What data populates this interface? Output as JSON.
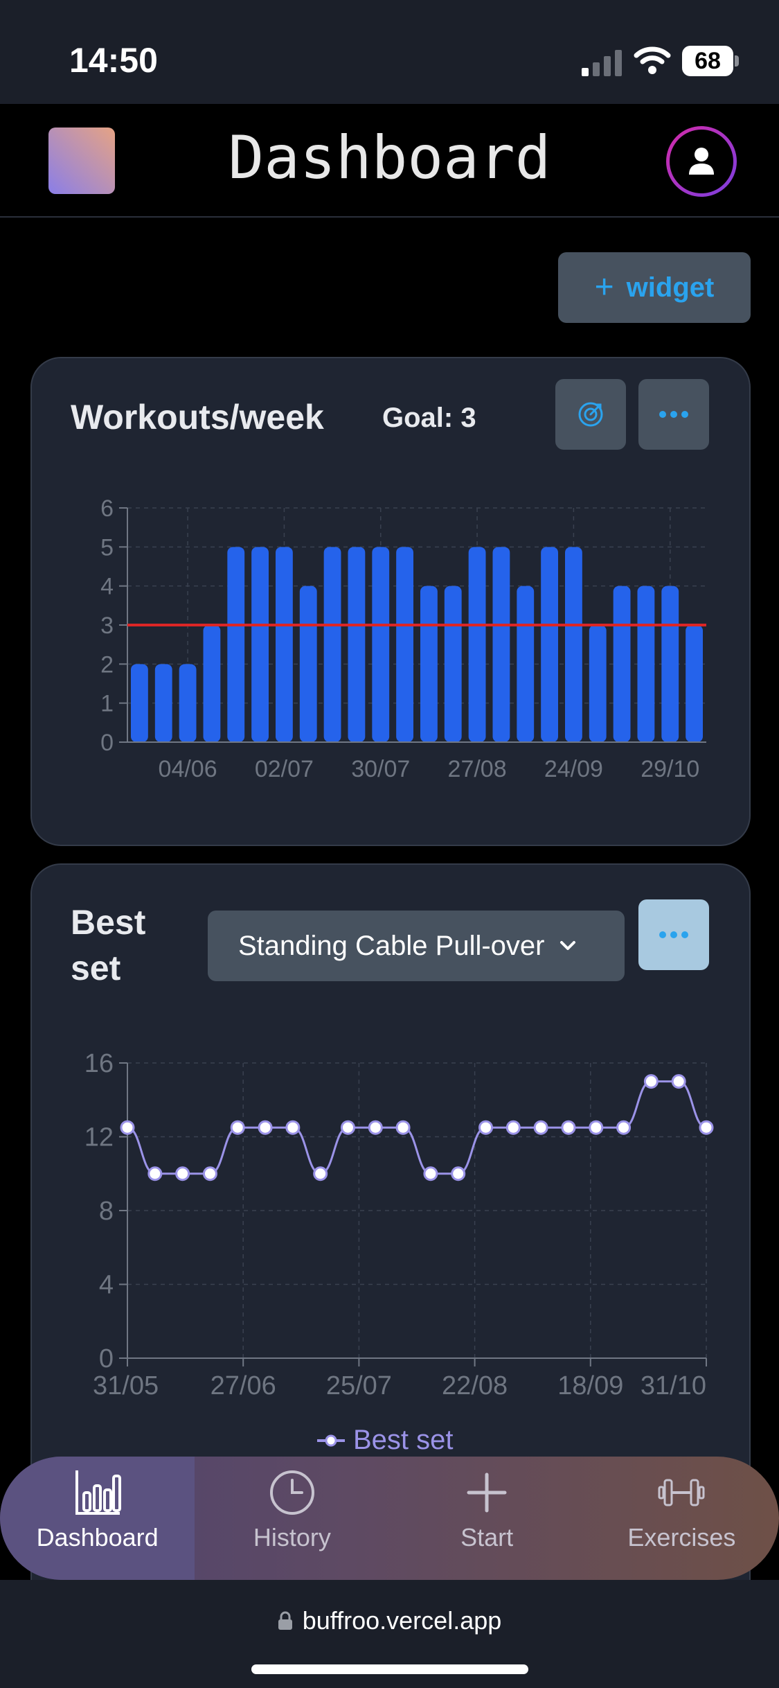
{
  "status_bar": {
    "time": "14:50",
    "battery": "68"
  },
  "header": {
    "title": "Dashboard"
  },
  "toolbar": {
    "add_widget_label": "widget"
  },
  "workouts_card": {
    "title": "Workouts/week",
    "goal_label": "Goal: 3"
  },
  "best_set_card": {
    "title_line1": "Best",
    "title_line2": "set",
    "exercise_select": "Standing Cable Pull-over",
    "legend": "Best set"
  },
  "chart_data": [
    {
      "type": "bar",
      "title": "Workouts/week",
      "x_tick_labels": [
        "04/06",
        "02/07",
        "30/07",
        "27/08",
        "24/09",
        "29/10"
      ],
      "values": [
        2,
        2,
        2,
        3,
        5,
        5,
        5,
        4,
        5,
        5,
        5,
        5,
        4,
        4,
        5,
        5,
        4,
        5,
        5,
        3,
        4,
        4,
        4,
        3
      ],
      "goal_line": 3,
      "ylim": [
        0,
        6
      ],
      "y_ticks": [
        0,
        1,
        2,
        3,
        4,
        5,
        6
      ],
      "bar_color": "#2563eb",
      "goal_color": "#dc2626",
      "grid": true
    },
    {
      "type": "line",
      "series": [
        {
          "name": "Best set",
          "values": [
            12.5,
            10,
            10,
            10,
            12.5,
            12.5,
            12.5,
            10,
            12.5,
            12.5,
            12.5,
            10,
            10,
            12.5,
            12.5,
            12.5,
            12.5,
            12.5,
            12.5,
            15,
            15,
            12.5
          ]
        }
      ],
      "x_tick_labels": [
        "31/05",
        "27/06",
        "25/07",
        "22/08",
        "18/09",
        "31/10"
      ],
      "ylim": [
        0,
        16
      ],
      "y_ticks": [
        0,
        4,
        8,
        12,
        16
      ],
      "line_color": "#9b93e8",
      "grid": true
    }
  ],
  "tabbar": {
    "tabs": [
      {
        "label": "Dashboard"
      },
      {
        "label": "History"
      },
      {
        "label": "Start"
      },
      {
        "label": "Exercises"
      }
    ]
  },
  "browser": {
    "url": "buffroo.vercel.app"
  }
}
